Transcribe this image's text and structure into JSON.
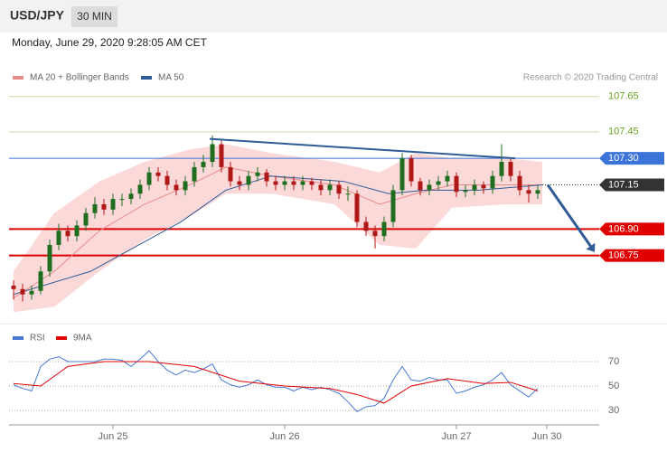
{
  "header": {
    "symbol": "USD/JPY",
    "timeframe": "30 MIN",
    "timestamp": "Monday, June 29, 2020 9:28:05 AM CET",
    "credit": "Research © 2020 Trading Central"
  },
  "chart_data": [
    {
      "type": "candlestick",
      "up_color": "#1f6e1f",
      "down_color": "#b01818",
      "xlim": [
        -0.5,
        65.5
      ],
      "ylim": [
        106.38,
        107.71
      ],
      "xticks": [
        {
          "value": 11,
          "label": "Jun 25"
        },
        {
          "value": 30,
          "label": "Jun 26"
        },
        {
          "value": 49,
          "label": "Jun 27"
        },
        {
          "value": 59,
          "label": "Jun 30"
        }
      ],
      "candles": [
        [
          106.58,
          106.61,
          106.5,
          106.56
        ],
        [
          106.56,
          106.59,
          106.49,
          106.53
        ],
        [
          106.53,
          106.58,
          106.5,
          106.55
        ],
        [
          106.55,
          106.69,
          106.53,
          106.66
        ],
        [
          106.66,
          106.84,
          106.63,
          106.81
        ],
        [
          106.81,
          106.93,
          106.78,
          106.89
        ],
        [
          106.89,
          106.92,
          106.83,
          106.86
        ],
        [
          106.86,
          106.95,
          106.83,
          106.92
        ],
        [
          106.92,
          107.02,
          106.89,
          106.99
        ],
        [
          106.99,
          107.08,
          106.96,
          107.04
        ],
        [
          107.04,
          107.07,
          106.98,
          107.01
        ],
        [
          107.01,
          107.1,
          106.98,
          107.07
        ],
        [
          107.07,
          107.1,
          107.03,
          107.07
        ],
        [
          107.07,
          107.13,
          107.04,
          107.1
        ],
        [
          107.1,
          107.18,
          107.07,
          107.15
        ],
        [
          107.15,
          107.25,
          107.12,
          107.22
        ],
        [
          107.22,
          107.25,
          107.17,
          107.2
        ],
        [
          107.2,
          107.23,
          107.12,
          107.15
        ],
        [
          107.15,
          107.18,
          107.09,
          107.12
        ],
        [
          107.12,
          107.2,
          107.09,
          107.17
        ],
        [
          107.17,
          107.28,
          107.14,
          107.25
        ],
        [
          107.25,
          107.32,
          107.22,
          107.28
        ],
        [
          107.28,
          107.43,
          107.25,
          107.38
        ],
        [
          107.38,
          107.4,
          107.22,
          107.25
        ],
        [
          107.25,
          107.28,
          107.14,
          107.17
        ],
        [
          107.17,
          107.2,
          107.12,
          107.15
        ],
        [
          107.15,
          107.23,
          107.12,
          107.2
        ],
        [
          107.2,
          107.25,
          107.17,
          107.22
        ],
        [
          107.22,
          107.24,
          107.14,
          107.17
        ],
        [
          107.17,
          107.2,
          107.12,
          107.15
        ],
        [
          107.15,
          107.2,
          107.12,
          107.17
        ],
        [
          107.17,
          107.2,
          107.12,
          107.15
        ],
        [
          107.15,
          107.2,
          107.12,
          107.17
        ],
        [
          107.17,
          107.19,
          107.12,
          107.15
        ],
        [
          107.15,
          107.18,
          107.09,
          107.12
        ],
        [
          107.12,
          107.18,
          107.09,
          107.15
        ],
        [
          107.15,
          107.17,
          107.07,
          107.1
        ],
        [
          107.1,
          107.14,
          107.06,
          107.1
        ],
        [
          107.1,
          107.12,
          106.91,
          106.94
        ],
        [
          106.94,
          106.97,
          106.86,
          106.89
        ],
        [
          106.89,
          106.92,
          106.79,
          106.86
        ],
        [
          106.86,
          106.97,
          106.83,
          106.94
        ],
        [
          106.94,
          107.15,
          106.91,
          107.12
        ],
        [
          107.12,
          107.33,
          107.09,
          107.3
        ],
        [
          107.3,
          107.32,
          107.14,
          107.17
        ],
        [
          107.17,
          107.19,
          107.09,
          107.12
        ],
        [
          107.12,
          107.18,
          107.09,
          107.15
        ],
        [
          107.15,
          107.2,
          107.12,
          107.17
        ],
        [
          107.17,
          107.23,
          107.14,
          107.2
        ],
        [
          107.2,
          107.22,
          107.08,
          107.11
        ],
        [
          107.11,
          107.15,
          107.08,
          107.12
        ],
        [
          107.12,
          107.18,
          107.09,
          107.15
        ],
        [
          107.15,
          107.17,
          107.1,
          107.13
        ],
        [
          107.13,
          107.23,
          107.1,
          107.2
        ],
        [
          107.2,
          107.38,
          107.17,
          107.28
        ],
        [
          107.28,
          107.3,
          107.17,
          107.2
        ],
        [
          107.2,
          107.23,
          107.09,
          107.12
        ],
        [
          107.12,
          107.15,
          107.05,
          107.1
        ],
        [
          107.1,
          107.15,
          107.07,
          107.12
        ]
      ],
      "series": [
        {
          "name": "MA 20 + Bollinger Bands",
          "color": "#e88a8a",
          "band_color": "#fcd9d9",
          "x": [
            0,
            4.5,
            9.5,
            14.5,
            19.5,
            23.5,
            28.5,
            35.5,
            40.5,
            44.5,
            48.5,
            54.5,
            58.5
          ],
          "values": [
            106.51,
            106.66,
            106.89,
            107.04,
            107.15,
            107.25,
            107.2,
            107.15,
            107.04,
            107.1,
            107.15,
            107.15,
            107.15
          ],
          "upper": [
            106.66,
            106.99,
            107.17,
            107.28,
            107.35,
            107.38,
            107.33,
            107.28,
            107.22,
            107.33,
            107.3,
            107.3,
            107.28
          ],
          "lower": [
            106.43,
            106.46,
            106.66,
            106.84,
            106.97,
            107.1,
            107.1,
            107.04,
            106.81,
            106.79,
            107.02,
            107.04,
            107.04
          ]
        },
        {
          "name": "MA 50",
          "color": "#2f5b96",
          "x": [
            0,
            8.5,
            18.5,
            23.5,
            28.5,
            36.5,
            41.5,
            45.5,
            51.5,
            58.5
          ],
          "values": [
            106.53,
            106.66,
            106.94,
            107.12,
            107.2,
            107.17,
            107.1,
            107.12,
            107.12,
            107.15
          ]
        }
      ],
      "levels": [
        {
          "value": 107.65,
          "color": "#6aa121",
          "style": "plain"
        },
        {
          "value": 107.45,
          "color": "#6aa121",
          "style": "plain"
        },
        {
          "value": 107.3,
          "label": "107.30",
          "color": "#3b73d9",
          "style": "box"
        },
        {
          "value": 107.15,
          "color": "#333333",
          "style": "dotted"
        },
        {
          "value": 106.9,
          "label": "106.90",
          "color": "#e00000",
          "style": "box"
        },
        {
          "value": 106.75,
          "color": "#e00000",
          "style": "box"
        }
      ],
      "trendlines": [
        {
          "x": [
            21.7,
            55.5
          ],
          "y": [
            107.41,
            107.3
          ],
          "color": "#2f5b96"
        }
      ],
      "arrows": [
        {
          "x": [
            59.1,
            64.3
          ],
          "y": [
            107.15,
            106.77
          ],
          "color": "#2f5b96"
        }
      ]
    },
    {
      "type": "line",
      "ylim": [
        20,
        80
      ],
      "yticks": [
        30,
        50,
        70
      ],
      "xlim": [
        -0.5,
        65.5
      ],
      "series": [
        {
          "name": "RSI",
          "color": "#4a78d4",
          "x": [
            0,
            1,
            2,
            3,
            4,
            5,
            6,
            7,
            8,
            9,
            10,
            11,
            12,
            13,
            14,
            15,
            16,
            17,
            18,
            19,
            20,
            21,
            22,
            23,
            24,
            25,
            26,
            27,
            28,
            29,
            30,
            31,
            32,
            33,
            34,
            35,
            36,
            37,
            38,
            39,
            40,
            41,
            42,
            43,
            44,
            45,
            46,
            47,
            48,
            49,
            50,
            51,
            52,
            53,
            54,
            55,
            56,
            57,
            58
          ],
          "values": [
            51,
            48,
            46,
            66,
            72,
            74,
            70,
            70,
            70,
            70,
            72,
            72,
            71,
            66,
            72,
            79,
            70,
            63,
            59,
            63,
            61,
            64,
            68,
            55,
            51,
            49,
            51,
            55,
            51,
            49,
            49,
            46,
            49,
            47,
            49,
            47,
            44,
            37,
            29,
            33,
            34,
            40,
            55,
            66,
            55,
            54,
            57,
            55,
            55,
            44,
            46,
            49,
            51,
            55,
            61,
            51,
            46,
            41,
            48
          ]
        },
        {
          "name": "9MA",
          "color": "#e00000",
          "x": [
            0,
            3,
            6,
            10,
            15,
            20,
            25,
            30,
            35,
            38,
            41,
            44,
            48,
            52,
            55,
            58
          ],
          "values": [
            52,
            50,
            66,
            70,
            70,
            66,
            54,
            50,
            48,
            43,
            36,
            50,
            56,
            52,
            53,
            46
          ]
        }
      ]
    }
  ]
}
